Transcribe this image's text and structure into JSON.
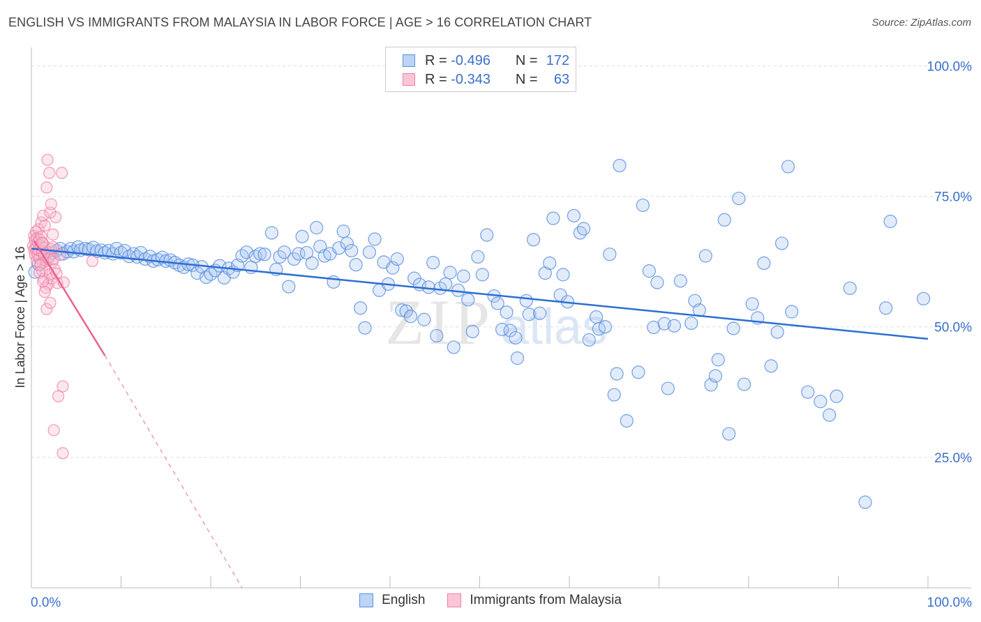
{
  "header": {
    "title": "ENGLISH VS IMMIGRANTS FROM MALAYSIA IN LABOR FORCE | AGE > 16 CORRELATION CHART",
    "source": "Source: ZipAtlas.com"
  },
  "legend_top": [
    {
      "r_label": "R =",
      "r_value": "-0.496",
      "n_label": "N =",
      "n_value": "172"
    },
    {
      "r_label": "R =",
      "r_value": "-0.343",
      "n_label": "N =",
      "n_value": "63"
    }
  ],
  "legend_bottom": [
    "English",
    "Immigrants from Malaysia"
  ],
  "watermark": {
    "zip": "ZIP",
    "atlas": "atlas"
  },
  "colors": {
    "english": "#5b8fdf",
    "english_fill": "#a9c6f2",
    "english_line": "#2c6fd0",
    "malaysia": "#f07fa5",
    "malaysia_fill": "#f7b9cd",
    "malaysia_line": "#e8628f",
    "axis_label": "#3a6fc9",
    "grid": "#dddddd"
  },
  "chart_data": {
    "type": "scatter",
    "title": "ENGLISH VS IMMIGRANTS FROM MALAYSIA IN LABOR FORCE | AGE > 16 CORRELATION CHART",
    "xlabel": "",
    "ylabel": "In Labor Force | Age > 16",
    "x_tick_labels": [
      "0.0%",
      "100.0%"
    ],
    "y_tick_labels": [
      "100.0%",
      "75.0%",
      "50.0%",
      "25.0%"
    ],
    "y_ticks": [
      100,
      75,
      50,
      25
    ],
    "xlim": [
      0,
      100
    ],
    "ylim": [
      0,
      103
    ],
    "grid": true,
    "legend_position": "top-center",
    "series": [
      {
        "name": "English",
        "r": -0.496,
        "n": 172,
        "trend": {
          "x0": 0,
          "y0": 65.0,
          "x1": 100,
          "y1": 47.7
        },
        "points": [
          [
            0.4,
            60.5
          ],
          [
            0.8,
            62.0
          ],
          [
            1.3,
            64.3
          ],
          [
            2.0,
            63.6
          ],
          [
            2.3,
            64.1
          ],
          [
            2.8,
            64.6
          ],
          [
            3.2,
            65.0
          ],
          [
            3.5,
            64.0
          ],
          [
            4.0,
            64.4
          ],
          [
            4.4,
            65.0
          ],
          [
            4.7,
            64.4
          ],
          [
            5.2,
            65.3
          ],
          [
            5.5,
            64.7
          ],
          [
            6.0,
            65.0
          ],
          [
            6.4,
            64.8
          ],
          [
            6.9,
            65.2
          ],
          [
            7.3,
            64.5
          ],
          [
            7.8,
            64.7
          ],
          [
            8.2,
            64.2
          ],
          [
            8.6,
            64.6
          ],
          [
            9.1,
            64.0
          ],
          [
            9.5,
            65.0
          ],
          [
            10.0,
            64.2
          ],
          [
            10.4,
            64.6
          ],
          [
            10.9,
            63.5
          ],
          [
            11.4,
            64.0
          ],
          [
            11.8,
            63.4
          ],
          [
            12.2,
            64.2
          ],
          [
            12.7,
            63.0
          ],
          [
            13.2,
            63.5
          ],
          [
            13.6,
            62.6
          ],
          [
            14.1,
            62.9
          ],
          [
            14.6,
            63.3
          ],
          [
            15.0,
            62.6
          ],
          [
            15.5,
            62.8
          ],
          [
            16.0,
            62.3
          ],
          [
            16.5,
            61.8
          ],
          [
            17.0,
            61.4
          ],
          [
            17.5,
            62.0
          ],
          [
            18.0,
            61.8
          ],
          [
            18.5,
            60.3
          ],
          [
            19.0,
            61.5
          ],
          [
            19.5,
            59.5
          ],
          [
            20.0,
            60.1
          ],
          [
            20.5,
            60.8
          ],
          [
            21.0,
            61.7
          ],
          [
            21.5,
            59.4
          ],
          [
            22.0,
            61.2
          ],
          [
            22.5,
            60.5
          ],
          [
            23.0,
            61.8
          ],
          [
            23.5,
            63.6
          ],
          [
            24.0,
            64.3
          ],
          [
            24.5,
            61.4
          ],
          [
            25.0,
            63.5
          ],
          [
            25.5,
            64.0
          ],
          [
            26.0,
            63.9
          ],
          [
            26.8,
            68.0
          ],
          [
            27.3,
            61.0
          ],
          [
            27.7,
            63.4
          ],
          [
            28.2,
            64.3
          ],
          [
            28.7,
            57.7
          ],
          [
            29.3,
            63.0
          ],
          [
            29.8,
            64.0
          ],
          [
            30.2,
            67.3
          ],
          [
            30.7,
            64.2
          ],
          [
            31.3,
            62.2
          ],
          [
            31.8,
            69.0
          ],
          [
            32.2,
            65.4
          ],
          [
            32.7,
            63.6
          ],
          [
            33.3,
            64.0
          ],
          [
            33.7,
            58.6
          ],
          [
            34.3,
            65.1
          ],
          [
            34.8,
            68.3
          ],
          [
            35.2,
            66.0
          ],
          [
            35.7,
            64.6
          ],
          [
            36.2,
            61.9
          ],
          [
            36.7,
            53.6
          ],
          [
            37.2,
            49.8
          ],
          [
            37.7,
            64.3
          ],
          [
            38.3,
            66.8
          ],
          [
            38.8,
            57.0
          ],
          [
            39.3,
            62.4
          ],
          [
            39.8,
            58.2
          ],
          [
            40.3,
            61.3
          ],
          [
            40.8,
            63.0
          ],
          [
            41.3,
            53.2
          ],
          [
            41.8,
            53.0
          ],
          [
            42.3,
            52.0
          ],
          [
            42.7,
            59.3
          ],
          [
            43.3,
            58.1
          ],
          [
            43.8,
            51.4
          ],
          [
            44.3,
            57.6
          ],
          [
            44.8,
            62.3
          ],
          [
            45.2,
            48.3
          ],
          [
            45.6,
            57.4
          ],
          [
            46.2,
            58.2
          ],
          [
            46.7,
            60.4
          ],
          [
            47.1,
            46.1
          ],
          [
            47.6,
            57.0
          ],
          [
            48.2,
            59.7
          ],
          [
            48.7,
            55.2
          ],
          [
            49.2,
            49.1
          ],
          [
            49.8,
            63.4
          ],
          [
            50.3,
            60.0
          ],
          [
            50.8,
            67.6
          ],
          [
            51.6,
            55.9
          ],
          [
            52.0,
            54.5
          ],
          [
            52.5,
            49.5
          ],
          [
            53.0,
            52.8
          ],
          [
            53.4,
            49.3
          ],
          [
            54.0,
            47.9
          ],
          [
            54.2,
            44.0
          ],
          [
            55.2,
            55.0
          ],
          [
            55.5,
            52.4
          ],
          [
            56.0,
            66.7
          ],
          [
            56.7,
            52.6
          ],
          [
            57.3,
            60.3
          ],
          [
            57.8,
            62.2
          ],
          [
            58.2,
            70.8
          ],
          [
            59.0,
            56.1
          ],
          [
            59.3,
            60.0
          ],
          [
            59.8,
            54.8
          ],
          [
            60.5,
            71.3
          ],
          [
            61.2,
            68.0
          ],
          [
            61.6,
            68.8
          ],
          [
            62.2,
            47.5
          ],
          [
            63.0,
            51.9
          ],
          [
            63.3,
            49.6
          ],
          [
            64.0,
            50.0
          ],
          [
            64.5,
            63.9
          ],
          [
            65.0,
            37.0
          ],
          [
            65.3,
            41.0
          ],
          [
            65.6,
            80.9
          ],
          [
            66.4,
            32.0
          ],
          [
            67.7,
            41.3
          ],
          [
            68.2,
            73.3
          ],
          [
            68.9,
            60.7
          ],
          [
            69.4,
            49.9
          ],
          [
            69.8,
            58.5
          ],
          [
            70.6,
            50.6
          ],
          [
            71.0,
            38.2
          ],
          [
            71.7,
            50.2
          ],
          [
            72.4,
            58.8
          ],
          [
            73.6,
            50.7
          ],
          [
            74.0,
            55.0
          ],
          [
            74.5,
            53.2
          ],
          [
            75.2,
            63.6
          ],
          [
            75.8,
            38.9
          ],
          [
            76.3,
            40.6
          ],
          [
            76.6,
            43.7
          ],
          [
            77.3,
            70.5
          ],
          [
            77.8,
            29.5
          ],
          [
            78.3,
            49.7
          ],
          [
            78.9,
            74.6
          ],
          [
            79.5,
            39.0
          ],
          [
            80.4,
            54.4
          ],
          [
            81.0,
            51.7
          ],
          [
            81.7,
            62.2
          ],
          [
            82.5,
            42.5
          ],
          [
            83.2,
            49.0
          ],
          [
            83.7,
            66.0
          ],
          [
            84.4,
            80.7
          ],
          [
            84.8,
            52.9
          ],
          [
            86.6,
            37.5
          ],
          [
            88.0,
            35.7
          ],
          [
            89.0,
            33.1
          ],
          [
            89.8,
            36.7
          ],
          [
            91.3,
            57.4
          ],
          [
            93.0,
            16.4
          ],
          [
            95.3,
            53.6
          ],
          [
            95.8,
            70.2
          ],
          [
            99.5,
            55.4
          ]
        ]
      },
      {
        "name": "Immigrants from Malaysia",
        "r": -0.343,
        "n": 63,
        "trend_solid": {
          "x0": 0.3,
          "y0": 66.5,
          "x1": 8.2,
          "y1": 44.5
        },
        "trend_dashed": {
          "x0": 8.2,
          "y0": 44.5,
          "x1": 23.5,
          "y1": 0
        },
        "points": [
          [
            0.2,
            65.5
          ],
          [
            0.3,
            67.4
          ],
          [
            0.3,
            64.8
          ],
          [
            0.4,
            66.6
          ],
          [
            0.4,
            63.8
          ],
          [
            0.5,
            68.2
          ],
          [
            0.5,
            65.0
          ],
          [
            0.6,
            67.0
          ],
          [
            0.6,
            62.6
          ],
          [
            0.7,
            66.2
          ],
          [
            0.7,
            63.9
          ],
          [
            0.8,
            68.7
          ],
          [
            0.8,
            64.7
          ],
          [
            0.9,
            66.8
          ],
          [
            0.9,
            63.1
          ],
          [
            1.0,
            65.6
          ],
          [
            1.0,
            62.0
          ],
          [
            1.1,
            70.0
          ],
          [
            1.1,
            67.3
          ],
          [
            1.2,
            64.4
          ],
          [
            1.2,
            60.8
          ],
          [
            1.3,
            71.3
          ],
          [
            1.3,
            66.0
          ],
          [
            1.4,
            63.5
          ],
          [
            1.4,
            59.2
          ],
          [
            1.5,
            69.4
          ],
          [
            1.5,
            65.1
          ],
          [
            1.6,
            62.6
          ],
          [
            1.6,
            57.5
          ],
          [
            1.7,
            76.7
          ],
          [
            1.7,
            53.4
          ],
          [
            1.8,
            82.0
          ],
          [
            1.8,
            64.3
          ],
          [
            1.9,
            63.0
          ],
          [
            1.9,
            58.2
          ],
          [
            2.0,
            79.5
          ],
          [
            2.0,
            60.0
          ],
          [
            2.1,
            71.9
          ],
          [
            2.1,
            54.6
          ],
          [
            2.2,
            73.5
          ],
          [
            2.2,
            64.9
          ],
          [
            2.3,
            62.4
          ],
          [
            2.3,
            59.3
          ],
          [
            2.4,
            67.7
          ],
          [
            2.4,
            65.3
          ],
          [
            2.5,
            63.0
          ],
          [
            2.6,
            61.0
          ],
          [
            2.7,
            71.0
          ],
          [
            2.8,
            60.2
          ],
          [
            2.9,
            58.4
          ],
          [
            3.0,
            36.7
          ],
          [
            3.2,
            63.8
          ],
          [
            3.4,
            79.5
          ],
          [
            3.5,
            38.6
          ],
          [
            3.5,
            25.8
          ],
          [
            3.6,
            58.5
          ],
          [
            2.5,
            30.2
          ],
          [
            1.0,
            61.8
          ],
          [
            0.9,
            60.4
          ],
          [
            1.3,
            58.7
          ],
          [
            1.5,
            56.7
          ],
          [
            6.8,
            62.6
          ],
          [
            1.2,
            66.1
          ]
        ]
      }
    ]
  }
}
